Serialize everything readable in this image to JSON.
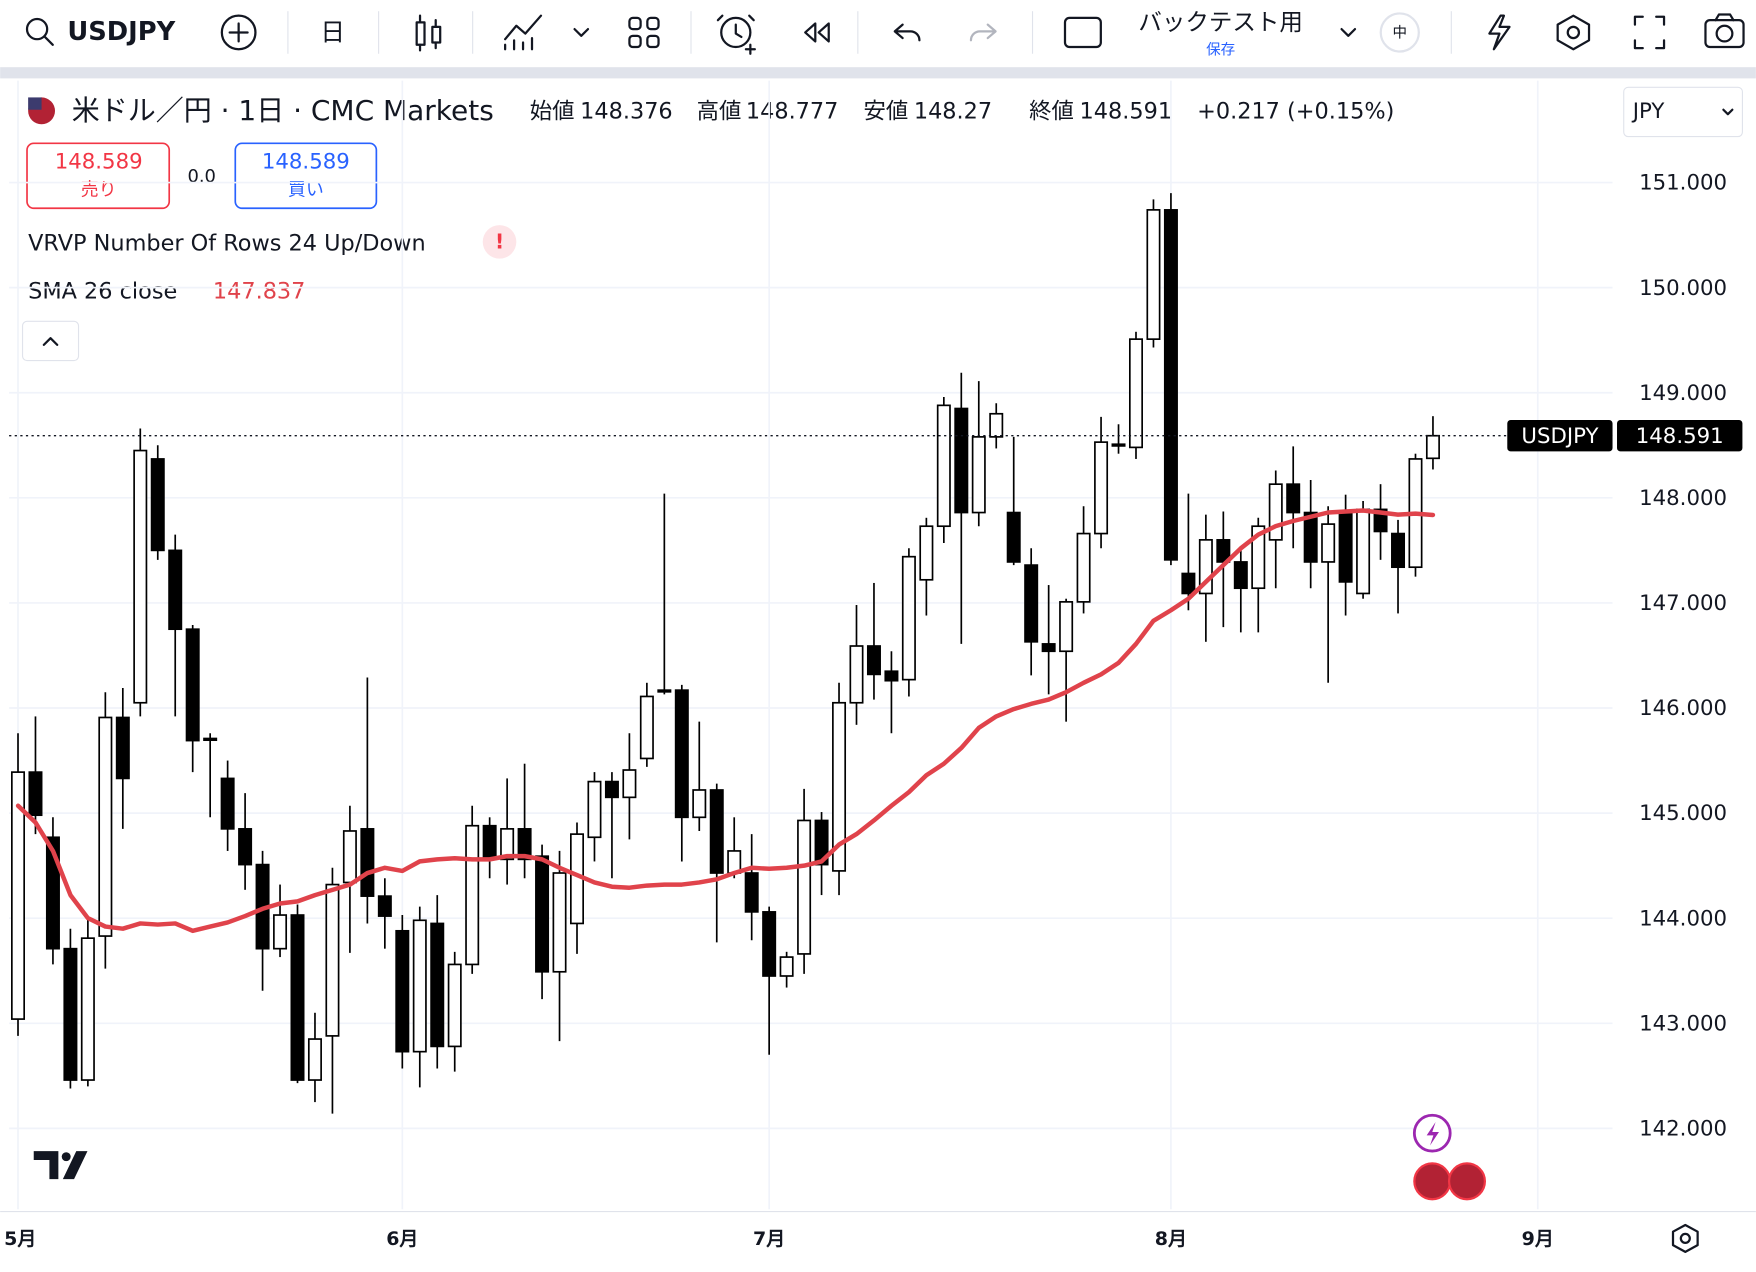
{
  "toolbar": {
    "symbol": "USDJPY",
    "interval": "日",
    "layout_name": "バックテスト用",
    "save_status": "保存",
    "language": "中"
  },
  "header": {
    "title": "米ドル／円 · 1日 · CMC Markets",
    "open_label": "始値",
    "high_label": "高値",
    "low_label": "安値",
    "close_label": "終値",
    "change": "+0.217 (+0.15%)",
    "sell_price": "148.589",
    "sell_label": "売り",
    "spread": "0.0",
    "buy_price": "148.589",
    "buy_label": "買い",
    "currency": "JPY",
    "indicator_vrvp": "VRVP Number Of Rows 24 Up/Down",
    "warning": "!"
  },
  "chart_data": {
    "type": "candlestick",
    "series": [
      {
        "name": "USDJPY",
        "up_color": "#ffffff",
        "down_color": "#000000",
        "open": [
          143.04,
          145.39,
          144.77,
          143.71,
          142.46,
          143.83,
          145.91,
          146.05,
          148.37,
          147.5,
          146.75,
          145.71,
          145.33,
          144.85,
          144.51,
          143.71,
          144.03,
          142.46,
          142.88,
          144.34,
          144.85,
          144.21,
          143.88,
          142.73,
          143.95,
          142.78,
          143.56,
          144.88,
          144.56,
          144.85,
          144.59,
          143.49,
          143.95,
          144.77,
          145.3,
          145.15,
          145.52,
          146.17,
          146.17,
          144.96,
          145.22,
          144.43,
          144.43,
          144.06,
          143.45,
          143.66,
          144.93,
          144.45,
          146.05,
          146.59,
          146.35,
          146.27,
          147.22,
          147.73,
          148.85,
          147.86,
          148.58,
          147.86,
          147.36,
          146.61,
          146.54,
          147.01,
          147.66,
          148.5,
          148.48,
          149.51,
          150.74,
          147.28,
          147.09,
          147.6,
          147.39,
          147.14,
          147.6,
          148.13,
          147.86,
          147.39,
          147.86,
          147.09,
          147.89,
          147.66,
          147.34,
          148.376
        ],
        "high": [
          145.76,
          145.92,
          144.96,
          143.9,
          144.02,
          146.15,
          146.19,
          148.66,
          148.5,
          147.65,
          146.79,
          145.76,
          145.5,
          145.19,
          144.64,
          144.32,
          144.13,
          143.1,
          144.48,
          145.07,
          146.29,
          144.38,
          144.03,
          144.11,
          144.22,
          143.68,
          145.07,
          144.96,
          145.33,
          145.47,
          144.7,
          144.64,
          144.91,
          145.39,
          145.39,
          145.76,
          146.24,
          148.04,
          146.22,
          145.87,
          145.28,
          144.96,
          144.8,
          144.11,
          143.68,
          145.23,
          145.01,
          146.24,
          146.98,
          147.19,
          146.54,
          147.52,
          147.81,
          148.96,
          149.19,
          149.11,
          148.9,
          148.58,
          147.52,
          147.17,
          147.04,
          147.92,
          148.77,
          148.7,
          149.58,
          150.84,
          150.9,
          148.04,
          147.84,
          147.87,
          147.5,
          147.81,
          148.26,
          148.49,
          148.17,
          147.92,
          148.03,
          147.97,
          148.13,
          147.79,
          148.42,
          148.777
        ],
        "low": [
          142.88,
          144.8,
          143.56,
          142.38,
          142.4,
          143.52,
          144.85,
          145.92,
          147.41,
          145.92,
          145.39,
          144.96,
          144.64,
          144.27,
          143.31,
          143.63,
          142.43,
          142.25,
          142.14,
          143.67,
          143.95,
          143.71,
          142.57,
          142.39,
          142.57,
          142.54,
          143.47,
          144.38,
          144.32,
          144.38,
          143.23,
          142.83,
          143.66,
          144.54,
          144.38,
          144.75,
          145.44,
          146.13,
          144.54,
          144.83,
          143.77,
          144.38,
          143.79,
          142.7,
          143.34,
          143.47,
          144.22,
          144.22,
          145.84,
          146.08,
          145.76,
          146.11,
          146.88,
          147.57,
          146.61,
          147.73,
          148.47,
          147.36,
          146.31,
          146.13,
          145.87,
          146.9,
          147.52,
          148.42,
          148.37,
          149.43,
          147.36,
          146.93,
          146.63,
          146.77,
          146.72,
          146.72,
          147.14,
          147.52,
          147.14,
          146.24,
          146.88,
          147.04,
          147.41,
          146.9,
          147.25,
          148.27
        ],
        "close": [
          145.39,
          144.98,
          143.71,
          142.46,
          143.81,
          145.91,
          145.33,
          148.45,
          147.5,
          146.75,
          145.69,
          145.7,
          144.85,
          144.51,
          143.71,
          144.03,
          142.46,
          142.85,
          144.32,
          144.83,
          144.21,
          144.02,
          142.73,
          143.98,
          142.78,
          143.56,
          144.88,
          144.56,
          144.85,
          144.56,
          143.49,
          144.43,
          144.8,
          145.3,
          145.15,
          145.41,
          146.11,
          146.16,
          144.96,
          145.22,
          144.43,
          144.64,
          144.06,
          143.45,
          143.63,
          144.93,
          144.51,
          146.05,
          146.59,
          146.32,
          146.26,
          147.44,
          147.73,
          148.88,
          147.86,
          148.58,
          148.8,
          147.39,
          146.63,
          146.54,
          147.01,
          147.66,
          148.53,
          148.51,
          149.51,
          150.74,
          147.41,
          147.09,
          147.6,
          147.39,
          147.14,
          147.73,
          148.13,
          147.86,
          147.39,
          147.75,
          147.2,
          147.89,
          147.68,
          147.34,
          148.37,
          148.591
        ]
      }
    ],
    "sma": {
      "name": "SMA 26 close",
      "color": "#e0434b",
      "values": [
        145.07,
        144.91,
        144.64,
        144.22,
        144.0,
        143.92,
        143.9,
        143.95,
        143.94,
        143.95,
        143.88,
        143.92,
        143.96,
        144.02,
        144.09,
        144.14,
        144.16,
        144.22,
        144.27,
        144.32,
        144.43,
        144.48,
        144.45,
        144.54,
        144.56,
        144.57,
        144.56,
        144.56,
        144.59,
        144.59,
        144.56,
        144.48,
        144.41,
        144.34,
        144.3,
        144.29,
        144.31,
        144.32,
        144.32,
        144.34,
        144.37,
        144.43,
        144.48,
        144.47,
        144.48,
        144.5,
        144.54,
        144.7,
        144.8,
        144.93,
        145.07,
        145.2,
        145.36,
        145.47,
        145.62,
        145.81,
        145.92,
        145.99,
        146.04,
        146.08,
        146.15,
        146.24,
        146.32,
        146.43,
        146.61,
        146.83,
        146.93,
        147.04,
        147.2,
        147.36,
        147.52,
        147.65,
        147.73,
        147.78,
        147.82,
        147.86,
        147.87,
        147.88,
        147.86,
        147.84,
        147.85,
        147.837
      ]
    },
    "xlim": [
      -0.51,
      91.28
    ],
    "xticks": [
      {
        "value": 0,
        "label": "5月"
      },
      {
        "value": 22,
        "label": "6月"
      },
      {
        "value": 43,
        "label": "7月"
      },
      {
        "value": 66,
        "label": "8月"
      },
      {
        "value": 87,
        "label": "9月"
      }
    ],
    "ylim": [
      141.23,
      151.97
    ],
    "yticks": [
      {
        "value": 142,
        "label": "142.000"
      },
      {
        "value": 143,
        "label": "143.000"
      },
      {
        "value": 144,
        "label": "144.000"
      },
      {
        "value": 145,
        "label": "145.000"
      },
      {
        "value": 146,
        "label": "146.000"
      },
      {
        "value": 147,
        "label": "147.000"
      },
      {
        "value": 148,
        "label": "148.000"
      },
      {
        "value": 149,
        "label": "149.000"
      },
      {
        "value": 150,
        "label": "150.000"
      },
      {
        "value": 151,
        "label": "151.000"
      }
    ],
    "grid": true
  }
}
